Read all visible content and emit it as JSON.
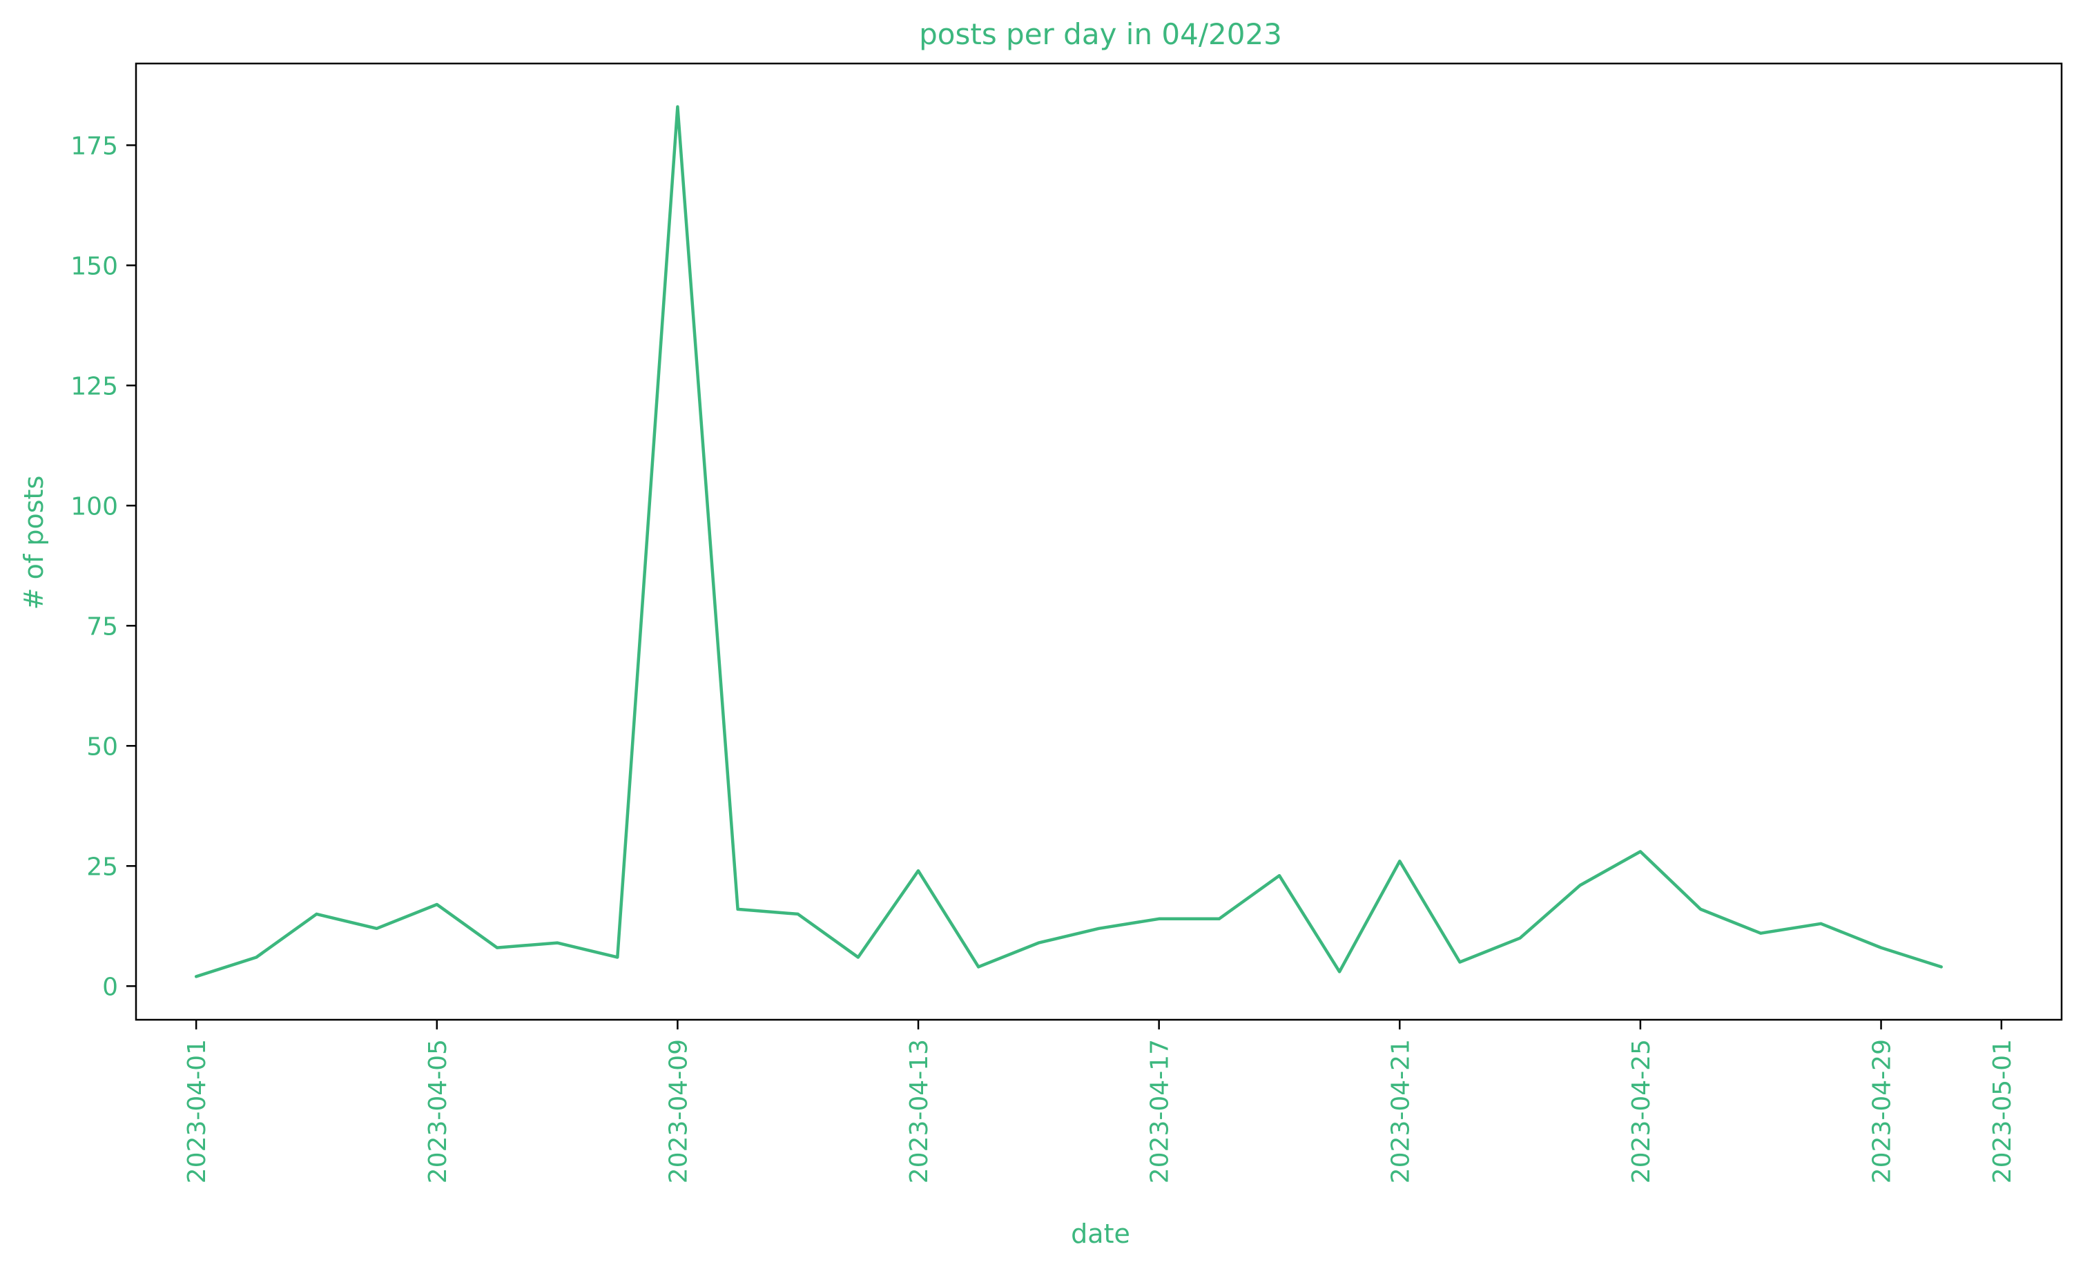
{
  "chart_data": {
    "type": "line",
    "title": "posts per day in 04/2023",
    "xlabel": "date",
    "ylabel": "# of posts",
    "color": "#3cb77e",
    "grid": false,
    "legend": "none",
    "x_range": [
      "2023-03-31",
      "2023-05-02"
    ],
    "ylim": [
      -7,
      192
    ],
    "y_ticks": [
      0,
      25,
      50,
      75,
      100,
      125,
      150,
      175
    ],
    "x_ticks": [
      "2023-04-01",
      "2023-04-05",
      "2023-04-09",
      "2023-04-13",
      "2023-04-17",
      "2023-04-21",
      "2023-04-25",
      "2023-04-29",
      "2023-05-01"
    ],
    "series": [
      {
        "x": [
          "2023-04-01",
          "2023-04-02",
          "2023-04-03",
          "2023-04-04",
          "2023-04-05",
          "2023-04-06",
          "2023-04-07",
          "2023-04-08",
          "2023-04-09",
          "2023-04-10",
          "2023-04-11",
          "2023-04-12",
          "2023-04-13",
          "2023-04-14",
          "2023-04-15",
          "2023-04-16",
          "2023-04-17",
          "2023-04-18",
          "2023-04-19",
          "2023-04-20",
          "2023-04-21",
          "2023-04-22",
          "2023-04-23",
          "2023-04-24",
          "2023-04-25",
          "2023-04-26",
          "2023-04-27",
          "2023-04-28",
          "2023-04-29",
          "2023-04-30"
        ],
        "y": [
          2,
          6,
          15,
          12,
          17,
          8,
          9,
          6,
          183,
          16,
          15,
          6,
          24,
          4,
          9,
          12,
          14,
          14,
          23,
          3,
          26,
          5,
          10,
          21,
          28,
          16,
          11,
          13,
          8,
          4
        ]
      }
    ]
  }
}
